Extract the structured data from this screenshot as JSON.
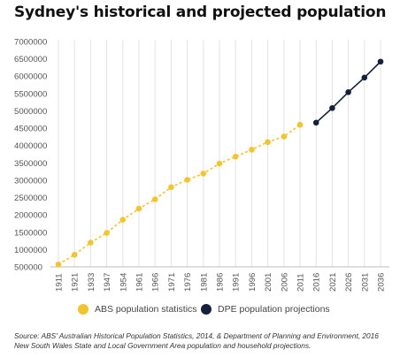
{
  "chart_data": {
    "type": "line",
    "title": "Sydney's historical and projected population",
    "xlabel": "",
    "ylabel": "",
    "categories": [
      "1911",
      "1921",
      "1933",
      "1947",
      "1954",
      "1961",
      "1966",
      "1971",
      "1976",
      "1981",
      "1986",
      "1991",
      "1996",
      "2001",
      "2006",
      "2011",
      "2016",
      "2021",
      "2026",
      "2031",
      "2036"
    ],
    "ylim": [
      500000,
      7000000
    ],
    "yticks": [
      500000,
      1000000,
      1500000,
      2000000,
      2500000,
      3000000,
      3500000,
      4000000,
      4500000,
      5000000,
      5500000,
      6000000,
      6500000,
      7000000
    ],
    "ytick_labels": [
      "500000",
      "1000000",
      "1500000",
      "2000000",
      "2500000",
      "3000000",
      "3500000",
      "4000000",
      "4500000",
      "5000000",
      "5500000",
      "6000000",
      "6500000",
      "7000000"
    ],
    "grid": "vertical",
    "legend_position": "bottom",
    "series": [
      {
        "name": "ABS population statistics",
        "color": "#f4c430",
        "x": [
          "1911",
          "1921",
          "1933",
          "1947",
          "1954",
          "1961",
          "1966",
          "1971",
          "1976",
          "1981",
          "1986",
          "1991",
          "1996",
          "2001",
          "2006",
          "2011"
        ],
        "values": [
          570000,
          850000,
          1200000,
          1480000,
          1860000,
          2180000,
          2450000,
          2800000,
          3010000,
          3190000,
          3480000,
          3680000,
          3880000,
          4100000,
          4260000,
          4600000
        ]
      },
      {
        "name": "DPE population projections",
        "color": "#14213d",
        "x": [
          "2016",
          "2021",
          "2026",
          "2031",
          "2036"
        ],
        "values": [
          4660000,
          5080000,
          5540000,
          5960000,
          6420000
        ]
      }
    ]
  },
  "source": {
    "line1": "Source: ABS' Australian Historical Population Statistics, 2014, & Department of Planning and Environment, 2016",
    "line2": "New South Wales State and Local Government Area population and household projections."
  }
}
